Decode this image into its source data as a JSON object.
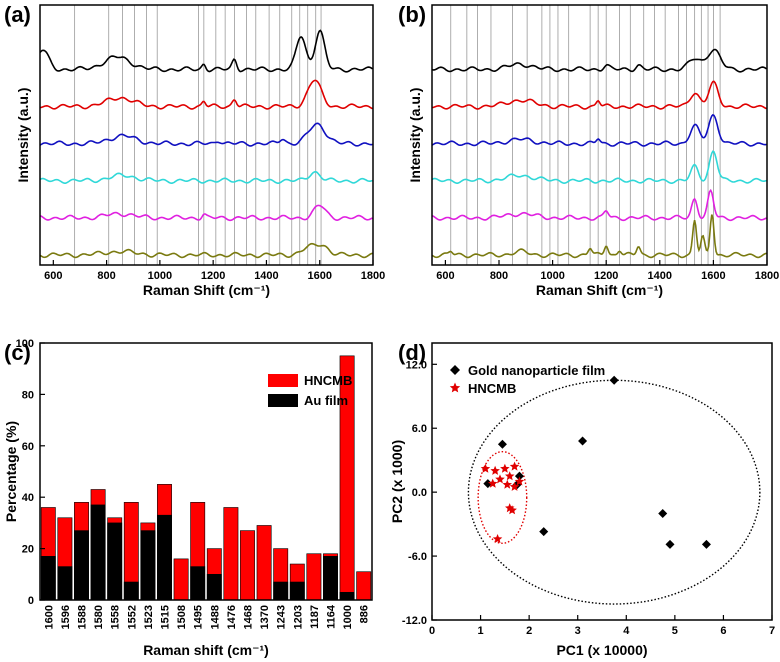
{
  "panels": {
    "a": "(a)",
    "b": "(b)",
    "c": "(c)",
    "d": "(d)"
  },
  "chart_data": [
    {
      "id": "a",
      "type": "line",
      "xlabel": "Raman Shift (cm⁻¹)",
      "ylabel": "Intensity (a.u.)",
      "xlim": [
        550,
        1800
      ],
      "xticks": [
        600,
        800,
        1000,
        1200,
        1400,
        1600,
        1800
      ],
      "vlines": [
        680,
        808,
        860,
        905,
        950,
        990,
        1145,
        1165,
        1210,
        1245,
        1280,
        1325,
        1360,
        1410,
        1450,
        1495,
        1525,
        1555,
        1585,
        1605
      ],
      "series": [
        {
          "color": "#000000",
          "offset": 5,
          "peaks": [
            [
              840,
              0.35,
              70
            ],
            [
              1165,
              0.15,
              10
            ],
            [
              1280,
              0.28,
              12
            ],
            [
              1530,
              0.95,
              25
            ],
            [
              1600,
              1.1,
              25
            ],
            [
              560,
              0.55,
              30
            ]
          ]
        },
        {
          "color": "#e00000",
          "offset": 4,
          "peaks": [
            [
              850,
              0.25,
              70
            ],
            [
              1165,
              0.15,
              10
            ],
            [
              1280,
              0.22,
              12
            ],
            [
              1580,
              0.75,
              35
            ]
          ]
        },
        {
          "color": "#1010c0",
          "offset": 3,
          "peaks": [
            [
              860,
              0.22,
              70
            ],
            [
              1220,
              0.1,
              15
            ],
            [
              1460,
              0.15,
              15
            ],
            [
              1590,
              0.55,
              45
            ]
          ]
        },
        {
          "color": "#30d8d8",
          "offset": 2,
          "peaks": [
            [
              860,
              0.15,
              70
            ],
            [
              1580,
              0.25,
              30
            ]
          ]
        },
        {
          "color": "#e020e0",
          "offset": 1,
          "peaks": [
            [
              850,
              0.12,
              70
            ],
            [
              1165,
              0.1,
              10
            ],
            [
              1600,
              0.35,
              30
            ]
          ]
        },
        {
          "color": "#7a7a10",
          "offset": 0,
          "peaks": [
            [
              850,
              0.1,
              80
            ],
            [
              1560,
              0.2,
              40
            ],
            [
              1610,
              0.25,
              35
            ]
          ]
        }
      ]
    },
    {
      "id": "b",
      "type": "line",
      "xlabel": "Raman Shift (cm⁻¹)",
      "ylabel": "Intensity (a.u.)",
      "xlim": [
        550,
        1800
      ],
      "xticks": [
        600,
        800,
        1000,
        1200,
        1400,
        1600,
        1800
      ],
      "vlines": [
        620,
        680,
        720,
        770,
        850,
        905,
        960,
        990,
        1020,
        1060,
        1140,
        1170,
        1200,
        1250,
        1290,
        1340,
        1380,
        1420,
        1470,
        1500,
        1530,
        1555,
        1580,
        1600,
        1625
      ],
      "series": [
        {
          "color": "#000000",
          "offset": 5,
          "peaks": [
            [
              880,
              0.15,
              60
            ],
            [
              1200,
              0.12,
              15
            ],
            [
              1320,
              0.12,
              15
            ],
            [
              1530,
              0.3,
              30
            ],
            [
              1600,
              0.55,
              35
            ]
          ]
        },
        {
          "color": "#e00000",
          "offset": 4,
          "peaks": [
            [
              880,
              0.18,
              70
            ],
            [
              1170,
              0.18,
              10
            ],
            [
              1530,
              0.4,
              25
            ],
            [
              1600,
              0.65,
              25
            ]
          ]
        },
        {
          "color": "#1010c0",
          "offset": 3,
          "peaks": [
            [
              880,
              0.12,
              70
            ],
            [
              1170,
              0.15,
              10
            ],
            [
              1530,
              0.5,
              25
            ],
            [
              1600,
              0.8,
              25
            ]
          ]
        },
        {
          "color": "#30d8d8",
          "offset": 2,
          "peaks": [
            [
              880,
              0.15,
              70
            ],
            [
              1530,
              0.4,
              20
            ],
            [
              1600,
              0.85,
              20
            ]
          ]
        },
        {
          "color": "#e020e0",
          "offset": 1,
          "peaks": [
            [
              880,
              0.12,
              70
            ],
            [
              1200,
              0.2,
              12
            ],
            [
              1530,
              0.55,
              15
            ],
            [
              1590,
              0.75,
              15
            ]
          ]
        },
        {
          "color": "#7a7a10",
          "offset": 0,
          "peaks": [
            [
              620,
              0.1,
              10
            ],
            [
              880,
              0.1,
              40
            ],
            [
              1140,
              0.2,
              10
            ],
            [
              1200,
              0.3,
              10
            ],
            [
              1250,
              0.15,
              10
            ],
            [
              1320,
              0.25,
              10
            ],
            [
              1530,
              1.0,
              10
            ],
            [
              1560,
              0.5,
              10
            ],
            [
              1595,
              1.2,
              10
            ]
          ]
        }
      ]
    },
    {
      "id": "c",
      "type": "bar",
      "xlabel": "Raman shift (cm⁻¹)",
      "ylabel": "Percentage (%)",
      "ylim": [
        0,
        100
      ],
      "yticks": [
        0,
        20,
        40,
        60,
        80,
        100
      ],
      "categories": [
        "1600",
        "1596",
        "1588",
        "1580",
        "1558",
        "1552",
        "1523",
        "1515",
        "1508",
        "1495",
        "1488",
        "1476",
        "1468",
        "1370",
        "1243",
        "1203",
        "1187",
        "1164",
        "1000",
        "886"
      ],
      "series": [
        {
          "name": "HNCMB",
          "color": "#ff0000",
          "values": [
            36,
            32,
            38,
            43,
            32,
            38,
            30,
            45,
            16,
            38,
            20,
            36,
            27,
            29,
            20,
            14,
            18,
            18,
            95,
            11
          ]
        },
        {
          "name": "Au film",
          "color": "#000000",
          "values": [
            17,
            13,
            27,
            37,
            30,
            7,
            27,
            33,
            0,
            13,
            10,
            0,
            0,
            0,
            7,
            7,
            0,
            17,
            3,
            0
          ]
        }
      ]
    },
    {
      "id": "d",
      "type": "scatter",
      "xlabel": "PC1 (x 10000)",
      "ylabel": "PC2 (x 1000)",
      "xlim": [
        0,
        7
      ],
      "ylim": [
        -12,
        14
      ],
      "xticks": [
        0,
        1,
        2,
        3,
        4,
        5,
        6,
        7
      ],
      "yticks": [
        -12.0,
        -6.0,
        0.0,
        6.0,
        12.0
      ],
      "ytick_labels": [
        "-12.0",
        "-6.0",
        "0.0",
        "6.0",
        "12.0"
      ],
      "series": [
        {
          "name": "Gold nanoparticle film",
          "marker": "diamond",
          "color": "#000000",
          "points": [
            [
              3.75,
              10.5
            ],
            [
              3.1,
              4.8
            ],
            [
              1.45,
              4.5
            ],
            [
              1.15,
              0.8
            ],
            [
              1.8,
              1.5
            ],
            [
              1.75,
              0.7
            ],
            [
              2.3,
              -3.7
            ],
            [
              4.75,
              -2.0
            ],
            [
              4.9,
              -4.9
            ],
            [
              5.65,
              -4.9
            ]
          ]
        },
        {
          "name": "HNCMB",
          "marker": "star",
          "color": "#e00000",
          "points": [
            [
              1.1,
              2.2
            ],
            [
              1.3,
              2.0
            ],
            [
              1.5,
              2.2
            ],
            [
              1.7,
              2.4
            ],
            [
              1.4,
              1.2
            ],
            [
              1.6,
              1.5
            ],
            [
              1.8,
              1.0
            ],
            [
              1.25,
              0.8
            ],
            [
              1.55,
              0.7
            ],
            [
              1.7,
              0.5
            ],
            [
              1.6,
              -1.5
            ],
            [
              1.65,
              -1.7
            ],
            [
              1.35,
              -4.4
            ]
          ]
        }
      ],
      "ellipses": [
        {
          "cx": 3.75,
          "cy": 0,
          "rx": 3.0,
          "ry": 10.5,
          "color": "#000000"
        },
        {
          "cx": 1.45,
          "cy": -0.5,
          "rx": 0.5,
          "ry": 4.3,
          "color": "#e00000"
        }
      ]
    }
  ]
}
